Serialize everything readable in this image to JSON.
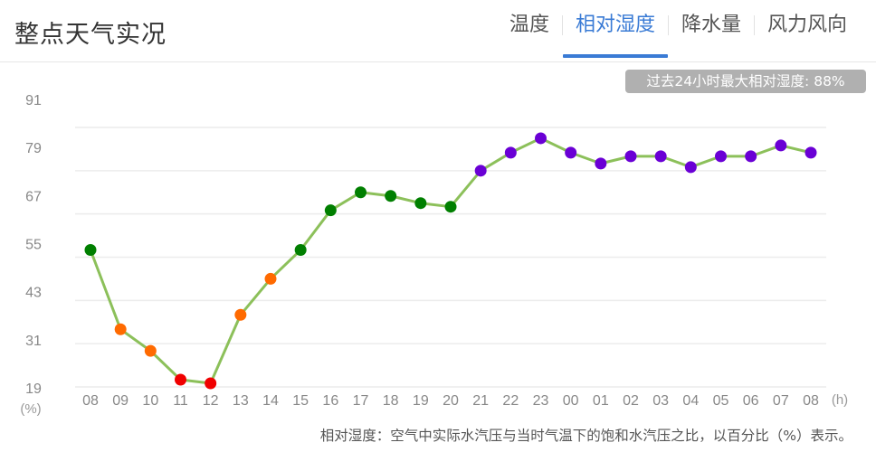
{
  "header": {
    "title": "整点天气实况",
    "tabs": [
      {
        "label": "温度",
        "active": false
      },
      {
        "label": "相对湿度",
        "active": true
      },
      {
        "label": "降水量",
        "active": false
      },
      {
        "label": "风力风向",
        "active": false
      }
    ]
  },
  "badge": {
    "text": "过去24小时最大相对湿度: 88%"
  },
  "footnote": "相对湿度：空气中实际水汽压与当时气温下的饱和水汽压之比，以百分比（%）表示。",
  "colors": {
    "accent": "#3a7bd5",
    "line": "#8cc05a",
    "red": "#f00000",
    "orange": "#ff6a00",
    "green": "#007f00",
    "purple": "#6a00d5"
  },
  "chart_data": {
    "type": "line",
    "title": "整点天气实况 - 相对湿度",
    "xlabel": "(h)",
    "ylabel": "(%)",
    "ylim": [
      19,
      91
    ],
    "yticks": [
      91,
      79,
      67,
      55,
      43,
      31,
      19
    ],
    "grid": true,
    "categories": [
      "08",
      "09",
      "10",
      "11",
      "12",
      "13",
      "14",
      "15",
      "16",
      "17",
      "18",
      "19",
      "20",
      "21",
      "22",
      "23",
      "00",
      "01",
      "02",
      "03",
      "04",
      "05",
      "06",
      "07",
      "08"
    ],
    "series": [
      {
        "name": "相对湿度",
        "values": [
          57,
          35,
          29,
          21,
          20,
          39,
          49,
          57,
          68,
          73,
          72,
          70,
          69,
          79,
          84,
          88,
          84,
          81,
          83,
          83,
          80,
          83,
          83,
          86,
          84
        ],
        "point_colors": [
          "green",
          "orange",
          "orange",
          "red",
          "red",
          "orange",
          "orange",
          "green",
          "green",
          "green",
          "green",
          "green",
          "green",
          "purple",
          "purple",
          "purple",
          "purple",
          "purple",
          "purple",
          "purple",
          "purple",
          "purple",
          "purple",
          "purple",
          "purple"
        ]
      }
    ]
  }
}
